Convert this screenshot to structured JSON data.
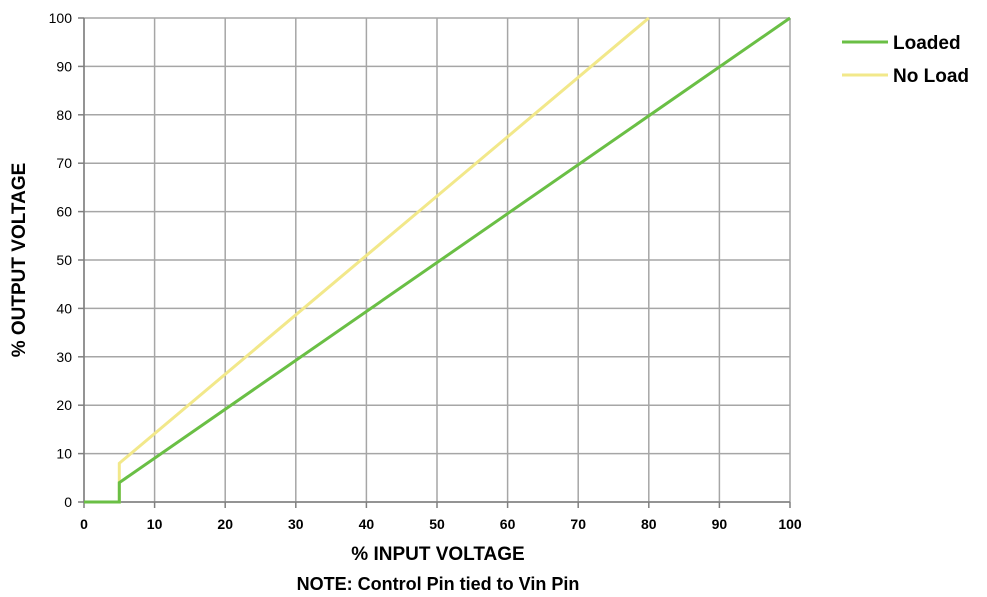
{
  "chart_data": {
    "type": "line",
    "xlabel": "% INPUT VOLTAGE",
    "ylabel": "% OUTPUT VOLTAGE",
    "note": "NOTE: Control Pin tied to Vin Pin",
    "xlim": [
      0,
      100
    ],
    "ylim": [
      0,
      100
    ],
    "x_ticks": [
      0,
      10,
      20,
      30,
      40,
      50,
      60,
      70,
      80,
      90,
      100
    ],
    "y_ticks": [
      0,
      10,
      20,
      30,
      40,
      50,
      60,
      70,
      80,
      90,
      100
    ],
    "grid": true,
    "legend_position": "top-right",
    "series": [
      {
        "name": "Loaded",
        "color": "#6abf45",
        "x": [
          0,
          5,
          5,
          100
        ],
        "y": [
          0,
          0,
          4,
          100
        ]
      },
      {
        "name": "No Load",
        "color": "#f2e88a",
        "x": [
          0,
          5,
          5,
          80
        ],
        "y": [
          0,
          0,
          8,
          100
        ]
      }
    ]
  }
}
